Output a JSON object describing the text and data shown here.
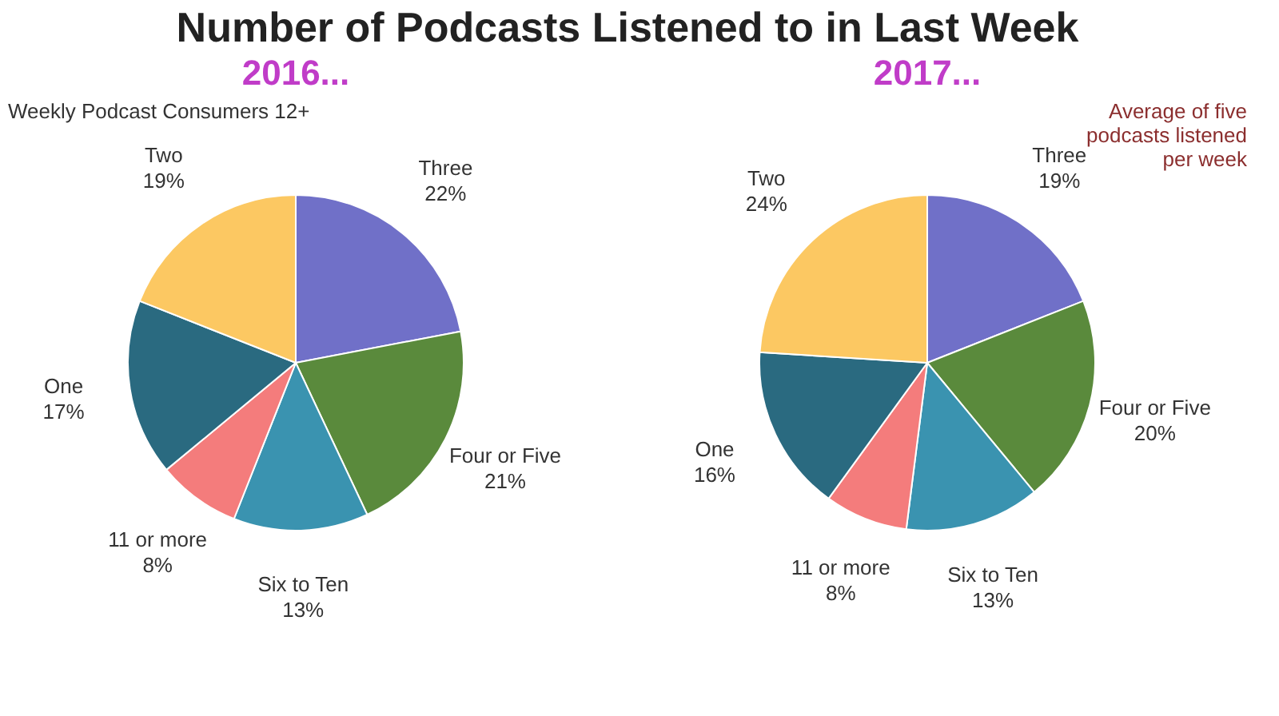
{
  "chart_data": [
    {
      "type": "pie",
      "title": "Number of Podcasts Listened to in Last Week",
      "subtitle": "2016...",
      "annotations": [
        "Weekly Podcast Consumers 12+"
      ],
      "categories": [
        "Three",
        "Four or Five",
        "Six to Ten",
        "11 or more",
        "One",
        "Two"
      ],
      "values": [
        22,
        21,
        13,
        8,
        17,
        19
      ],
      "value_labels": [
        "22%",
        "21%",
        "13%",
        "8%",
        "17%",
        "19%"
      ],
      "colors": [
        "#7070c8",
        "#5a8a3c",
        "#3a93b0",
        "#f47c7c",
        "#2a6a80",
        "#fcc862"
      ]
    },
    {
      "type": "pie",
      "subtitle": "2017...",
      "annotations": [
        "Average of five podcasts listened per week"
      ],
      "categories": [
        "Three",
        "Four or Five",
        "Six to Ten",
        "11 or more",
        "One",
        "Two"
      ],
      "values": [
        19,
        20,
        13,
        8,
        16,
        24
      ],
      "value_labels": [
        "19%",
        "20%",
        "13%",
        "8%",
        "16%",
        "24%"
      ],
      "colors": [
        "#7070c8",
        "#5a8a3c",
        "#3a93b0",
        "#f47c7c",
        "#2a6a80",
        "#fcc862"
      ]
    }
  ]
}
